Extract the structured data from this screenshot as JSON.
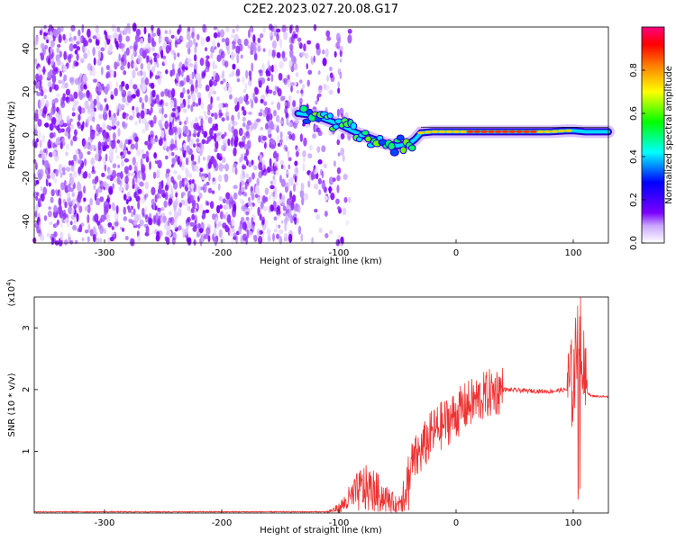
{
  "title": "C2E2.2023.027.20.08.G17",
  "chart_data": [
    {
      "type": "heatmap",
      "xlabel": "Height of straight line (km)",
      "ylabel": "Frequency (Hz)",
      "xlim": [
        -360,
        130
      ],
      "ylim": [
        -50,
        50
      ],
      "x_ticks": [
        -300,
        -200,
        -100,
        0,
        100
      ],
      "y_ticks": [
        -40,
        -20,
        0,
        20,
        40
      ],
      "colorbar": {
        "label": "Normalized spectral amplitude",
        "range": [
          0,
          1
        ],
        "ticks": [
          0.0,
          0.2,
          0.4,
          0.6,
          0.8
        ],
        "tick_labels": [
          "0.0",
          "0.2",
          "0.4",
          "0.6",
          "0.8"
        ],
        "colormap": [
          "#ffffff",
          "#7a00ff",
          "#0000ff",
          "#00ffff",
          "#00ff00",
          "#ffff00",
          "#ff8000",
          "#ff0000",
          "#ff0080"
        ]
      },
      "noise_region": {
        "x_range": [
          -360,
          -110
        ],
        "y_range": [
          -50,
          50
        ]
      },
      "signal_track": {
        "x": [
          -135,
          -120,
          -100,
          -85,
          -70,
          -60,
          -50,
          -40,
          -35,
          -30,
          -20,
          0,
          20,
          50,
          80,
          95,
          100,
          110,
          130
        ],
        "freq": [
          10,
          9,
          5,
          1,
          -2,
          -4,
          -5,
          -4,
          -2,
          1,
          1.5,
          1.5,
          1.5,
          1.5,
          1.5,
          2,
          2,
          1.5,
          1.5
        ]
      }
    },
    {
      "type": "line",
      "xlabel": "Height of straight line (km)",
      "ylabel": "SNR (10 * v/v)",
      "y_multiplier": "(x10",
      "y_multiplier_exp": "4",
      "y_multiplier_close": ")",
      "xlim": [
        -360,
        130
      ],
      "ylim": [
        0,
        3.5
      ],
      "x_ticks": [
        -300,
        -200,
        -100,
        0,
        100
      ],
      "y_ticks": [
        1,
        2,
        3
      ],
      "line_color": "#ee3333",
      "envelope": {
        "x": [
          -360,
          -110,
          -100,
          -90,
          -80,
          -70,
          -60,
          -50,
          -40,
          -30,
          -20,
          -10,
          0,
          10,
          20,
          30,
          40,
          60,
          80,
          95,
          100,
          103,
          106,
          108,
          110,
          115,
          130
        ],
        "y": [
          0.02,
          0.02,
          0.1,
          0.3,
          0.5,
          0.45,
          0.3,
          0.15,
          0.7,
          1.0,
          1.3,
          1.45,
          1.6,
          1.75,
          1.85,
          1.95,
          2.0,
          1.98,
          1.97,
          2.0,
          2.1,
          2.6,
          3.2,
          2.4,
          2.0,
          1.9,
          1.88
        ]
      }
    }
  ]
}
